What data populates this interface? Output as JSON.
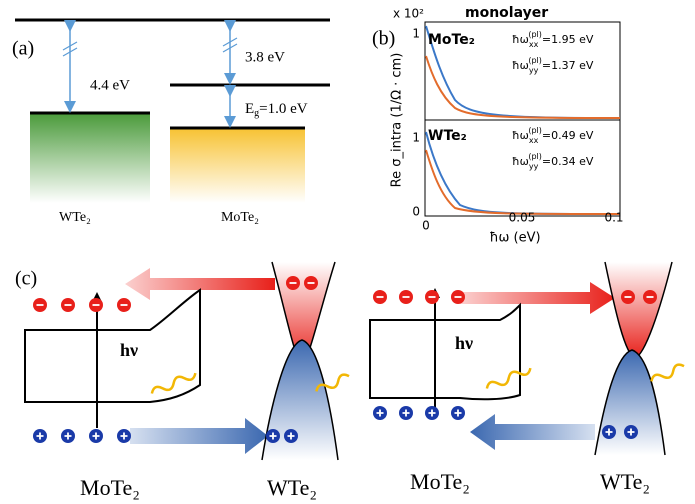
{
  "panel_a": {
    "label": "(a)",
    "gap_left": "4.4 eV",
    "gap_right": "3.8 eV",
    "bandgap": {
      "main": "E",
      "sub": "g",
      "rest": "=1.0 eV"
    },
    "left_material": "WTe₂",
    "right_material": "MoTe₂"
  },
  "panel_b": {
    "label": "(b)",
    "multiplier": "x 10²",
    "title": "monolayer",
    "y_label": "Re σ_intra (1/Ω · cm)",
    "x_label": "ħω (eV)",
    "x_ticks": [
      "0",
      "0.05",
      "0.1"
    ],
    "top": {
      "material": "MoTe₂",
      "y_tick": "1",
      "notes": [
        {
          "prefix": "ħω",
          "sub": "xx",
          "sup": "(pl)",
          "value": "=1.95 eV"
        },
        {
          "prefix": "ħω",
          "sub": "yy",
          "sup": "(pl)",
          "value": "=1.37 eV"
        }
      ]
    },
    "bottom": {
      "material": "WTe₂",
      "y_ticks": [
        "1",
        "0"
      ],
      "notes": [
        {
          "prefix": "ħω",
          "sub": "xx",
          "sup": "(pl)",
          "value": "=0.49 eV"
        },
        {
          "prefix": "ħω",
          "sub": "yy",
          "sup": "(pl)",
          "value": "=0.34 eV"
        }
      ]
    }
  },
  "panel_c": {
    "label": "(c)",
    "photon_left": "hν",
    "photon_right": "hν",
    "left_materials": [
      "MoTe₂",
      "WTe₂"
    ],
    "right_materials": [
      "MoTe₂",
      "WTe₂"
    ]
  }
}
